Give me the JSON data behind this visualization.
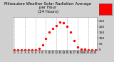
{
  "hours": [
    0,
    1,
    2,
    3,
    4,
    5,
    6,
    7,
    8,
    9,
    10,
    11,
    12,
    13,
    14,
    15,
    16,
    17,
    18,
    19,
    20,
    21,
    22,
    23
  ],
  "values": [
    0,
    0,
    0,
    0,
    0,
    0,
    0,
    8,
    40,
    95,
    150,
    185,
    210,
    240,
    235,
    200,
    150,
    80,
    20,
    2,
    5,
    0,
    0,
    0
  ],
  "dot_color": "#ff0000",
  "grid_color": "#bbbbbb",
  "title": "Milwaukee Weather Solar Radiation Average\nper Hour\n(24 Hours)",
  "title_fontsize": 4.0,
  "tick_fontsize": 3.2,
  "ylim": [
    0,
    280
  ],
  "xlim": [
    -0.5,
    23.5
  ],
  "ytick_values": [
    0,
    50,
    100,
    150,
    200,
    250
  ],
  "ytick_labels": [
    "0",
    "50",
    "100",
    "150",
    "200",
    "250"
  ],
  "xticks": [
    0,
    1,
    2,
    3,
    4,
    5,
    6,
    7,
    8,
    9,
    10,
    11,
    12,
    13,
    14,
    15,
    16,
    17,
    18,
    19,
    20,
    21,
    22,
    23
  ],
  "legend_color": "#ff0000",
  "outer_bg": "#d8d8d8",
  "plot_bg": "#ffffff",
  "fig_bg": "#d0d0d0"
}
